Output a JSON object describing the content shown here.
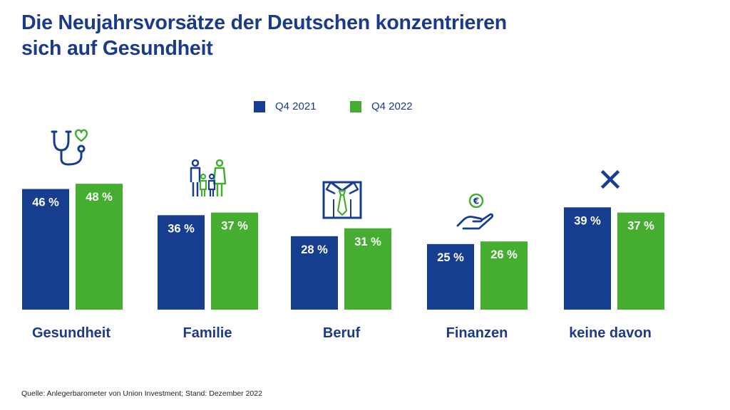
{
  "title": {
    "line1": "Die Neujahrsvorsätze der Deutschen konzentrieren",
    "line2": "sich auf Gesundheit"
  },
  "colors": {
    "primary": "#1a3a8a",
    "series1": "#173d8e",
    "series2": "#45ad2f",
    "text": "#222222"
  },
  "source": "Quelle: Anlegerbarometer von Union Investment; Stand: Dezember 2022",
  "chart_data": {
    "type": "bar",
    "title": "Die Neujahrsvorsätze der Deutschen konzentrieren sich auf Gesundheit",
    "xlabel": "",
    "ylabel": "",
    "ylim": [
      0,
      100
    ],
    "grid": false,
    "legend_position": "top-center",
    "categories": [
      "Gesundheit",
      "Familie",
      "Beruf",
      "Finanzen",
      "keine davon"
    ],
    "icons": [
      "stethoscope-heart-icon",
      "family-icon",
      "shirt-tie-icon",
      "euro-coin-hand-icon",
      "cross-icon"
    ],
    "series": [
      {
        "name": "Q4 2021",
        "color": "#173d8e",
        "values": [
          46,
          36,
          28,
          25,
          39
        ],
        "labels": [
          "46 %",
          "36 %",
          "28 %",
          "25 %",
          "39 %"
        ]
      },
      {
        "name": "Q4 2022",
        "color": "#45ad2f",
        "values": [
          48,
          37,
          31,
          26,
          37
        ],
        "labels": [
          "48 %",
          "37 %",
          "31 %",
          "26 %",
          "37 %"
        ]
      }
    ]
  }
}
